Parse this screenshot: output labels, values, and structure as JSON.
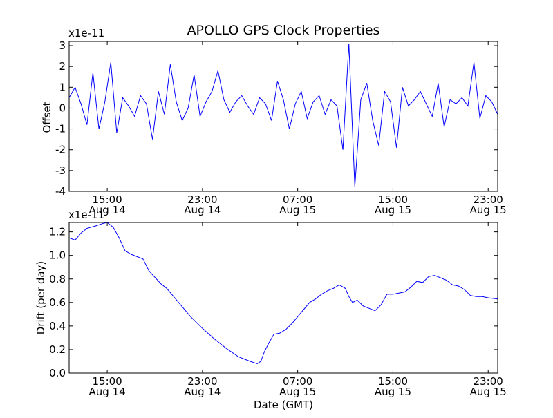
{
  "chart_data": [
    {
      "type": "line",
      "title": "APOLLO GPS Clock Properties",
      "xlabel": "",
      "ylabel": "Offset",
      "multiplier": "x1e-11",
      "ylim": [
        -4,
        3.2
      ],
      "yticks": [
        -4,
        -3,
        -2,
        -1,
        0,
        1,
        2,
        3
      ],
      "xlim_hours": [
        11.8,
        47.8
      ],
      "xticks": [
        {
          "hour": 15,
          "time": "15:00",
          "date": "Aug 14"
        },
        {
          "hour": 23,
          "time": "23:00",
          "date": "Aug 14"
        },
        {
          "hour": 31,
          "time": "07:00",
          "date": "Aug 15"
        },
        {
          "hour": 39,
          "time": "15:00",
          "date": "Aug 15"
        },
        {
          "hour": 47,
          "time": "23:00",
          "date": "Aug 15"
        }
      ],
      "line_color": "#0000ff",
      "series": [
        {
          "name": "Offset",
          "x_hours": [
            11.8,
            12.3,
            12.8,
            13.3,
            13.8,
            14.3,
            14.8,
            15.3,
            15.8,
            16.3,
            16.8,
            17.3,
            17.8,
            18.3,
            18.8,
            19.3,
            19.8,
            20.3,
            20.8,
            21.3,
            21.8,
            22.3,
            22.8,
            23.3,
            23.8,
            24.3,
            24.8,
            25.3,
            25.8,
            26.3,
            26.8,
            27.3,
            27.8,
            28.3,
            28.8,
            29.3,
            29.8,
            30.3,
            30.8,
            31.3,
            31.8,
            32.3,
            32.8,
            33.3,
            33.8,
            34.3,
            34.8,
            35.3,
            35.8,
            36.3,
            36.8,
            37.3,
            37.8,
            38.3,
            38.8,
            39.3,
            39.8,
            40.3,
            40.8,
            41.3,
            41.8,
            42.3,
            42.8,
            43.3,
            43.8,
            44.3,
            44.8,
            45.3,
            45.8,
            46.3,
            46.8,
            47.3,
            47.8
          ],
          "values": [
            0.5,
            1.0,
            0.2,
            -0.8,
            1.7,
            -1.0,
            0.3,
            2.2,
            -1.2,
            0.5,
            0.1,
            -0.4,
            0.6,
            0.2,
            -1.5,
            0.8,
            -0.3,
            2.1,
            0.3,
            -0.6,
            0.0,
            1.6,
            -0.4,
            0.3,
            0.8,
            1.8,
            0.4,
            -0.2,
            0.3,
            0.6,
            0.1,
            -0.3,
            0.5,
            0.2,
            -0.6,
            1.3,
            0.4,
            -1.0,
            0.2,
            0.8,
            -0.5,
            0.3,
            0.6,
            -0.3,
            0.4,
            0.1,
            -2.0,
            3.1,
            -3.8,
            0.4,
            1.2,
            -0.6,
            -1.8,
            0.8,
            0.3,
            -1.9,
            1.0,
            0.1,
            0.4,
            0.8,
            0.2,
            -0.4,
            1.2,
            -0.9,
            0.4,
            0.2,
            0.5,
            0.1,
            2.2,
            -0.5,
            0.6,
            0.3,
            -0.3
          ]
        }
      ]
    },
    {
      "type": "line",
      "title": "",
      "xlabel": "Date (GMT)",
      "ylabel": "Drift (per day)",
      "multiplier": "x1e-11",
      "ylim": [
        0.0,
        1.28
      ],
      "yticks": [
        0.0,
        0.2,
        0.4,
        0.6,
        0.8,
        1.0,
        1.2
      ],
      "ytick_labels": [
        "0.0",
        "0.2",
        "0.4",
        "0.6",
        "0.8",
        "1.0",
        "1.2"
      ],
      "xlim_hours": [
        11.8,
        47.8
      ],
      "xticks": [
        {
          "hour": 15,
          "time": "15:00",
          "date": "Aug 14"
        },
        {
          "hour": 23,
          "time": "23:00",
          "date": "Aug 14"
        },
        {
          "hour": 31,
          "time": "07:00",
          "date": "Aug 15"
        },
        {
          "hour": 39,
          "time": "15:00",
          "date": "Aug 15"
        },
        {
          "hour": 47,
          "time": "23:00",
          "date": "Aug 15"
        }
      ],
      "line_color": "#0000ff",
      "series": [
        {
          "name": "Drift",
          "x_hours": [
            11.8,
            12.3,
            12.8,
            13.3,
            14.0,
            14.6,
            15.0,
            15.5,
            16.0,
            16.5,
            17.0,
            18.0,
            18.5,
            19.5,
            20.0,
            21.0,
            22.0,
            23.0,
            24.0,
            25.0,
            26.0,
            26.5,
            27.0,
            27.3,
            27.6,
            27.9,
            28.2,
            28.6,
            29.0,
            29.5,
            30.0,
            30.5,
            31.0,
            31.5,
            32.0,
            32.5,
            33.0,
            33.5,
            34.0,
            34.5,
            35.0,
            35.3,
            35.6,
            36.0,
            36.5,
            37.0,
            37.5,
            38.0,
            38.5,
            39.0,
            39.5,
            40.0,
            40.5,
            41.0,
            41.5,
            42.0,
            42.5,
            43.0,
            43.5,
            44.0,
            44.5,
            45.0,
            45.5,
            46.0,
            46.5,
            47.0,
            47.8
          ],
          "values": [
            1.15,
            1.13,
            1.19,
            1.23,
            1.25,
            1.27,
            1.28,
            1.24,
            1.15,
            1.04,
            1.01,
            0.97,
            0.87,
            0.76,
            0.72,
            0.6,
            0.48,
            0.38,
            0.29,
            0.21,
            0.14,
            0.12,
            0.1,
            0.09,
            0.08,
            0.1,
            0.18,
            0.26,
            0.33,
            0.34,
            0.37,
            0.42,
            0.48,
            0.54,
            0.6,
            0.63,
            0.67,
            0.7,
            0.72,
            0.75,
            0.72,
            0.65,
            0.6,
            0.62,
            0.57,
            0.55,
            0.53,
            0.58,
            0.67,
            0.67,
            0.68,
            0.69,
            0.73,
            0.78,
            0.77,
            0.82,
            0.83,
            0.81,
            0.79,
            0.75,
            0.74,
            0.71,
            0.66,
            0.65,
            0.65,
            0.64,
            0.63
          ]
        }
      ]
    }
  ]
}
